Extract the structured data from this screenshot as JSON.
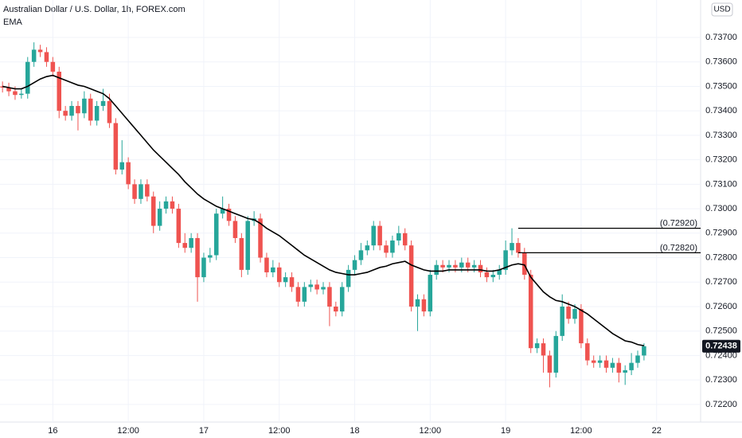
{
  "chart_data": {
    "type": "candlestick",
    "title": "Australian Dollar / U.S. Dollar, 1h, FOREX.com",
    "indicator": "EMA",
    "currency": "USD",
    "up_color": "#26a69a",
    "down_color": "#ef5350",
    "ema_color": "#000000",
    "grid": true,
    "xlim": [
      -0.4,
      111
    ],
    "xticks": [
      {
        "value": 8,
        "label": "16"
      },
      {
        "value": 20,
        "label": "12:00"
      },
      {
        "value": 32,
        "label": "17"
      },
      {
        "value": 44,
        "label": "12:00"
      },
      {
        "value": 56,
        "label": "18"
      },
      {
        "value": 68,
        "label": "12:00"
      },
      {
        "value": 80,
        "label": "19"
      },
      {
        "value": 92,
        "label": "12:00"
      },
      {
        "value": 104,
        "label": "22"
      }
    ],
    "ylim": [
      0.72128,
      0.73853
    ],
    "yticks": [
      {
        "value": 0.722,
        "label": "0.72200"
      },
      {
        "value": 0.723,
        "label": "0.72300"
      },
      {
        "value": 0.724,
        "label": "0.72400"
      },
      {
        "value": 0.725,
        "label": "0.72500"
      },
      {
        "value": 0.726,
        "label": "0.72600"
      },
      {
        "value": 0.727,
        "label": "0.72700"
      },
      {
        "value": 0.728,
        "label": "0.72800"
      },
      {
        "value": 0.729,
        "label": "0.72900"
      },
      {
        "value": 0.73,
        "label": "0.73000"
      },
      {
        "value": 0.731,
        "label": "0.73100"
      },
      {
        "value": 0.732,
        "label": "0.73200"
      },
      {
        "value": 0.733,
        "label": "0.73300"
      },
      {
        "value": 0.734,
        "label": "0.73400"
      },
      {
        "value": 0.735,
        "label": "0.73500"
      },
      {
        "value": 0.736,
        "label": "0.73600"
      },
      {
        "value": 0.737,
        "label": "0.73700"
      }
    ],
    "open": [
      0.735,
      0.73495,
      0.7348,
      0.73465,
      0.7347,
      0.736,
      0.7365,
      0.7364,
      0.736,
      0.7356,
      0.734,
      0.7338,
      0.7342,
      0.7339,
      0.7345,
      0.7336,
      0.7342,
      0.7344,
      0.7335,
      0.7316,
      0.7319,
      0.731,
      0.7304,
      0.731,
      0.7305,
      0.7293,
      0.73,
      0.7303,
      0.73,
      0.7286,
      0.7284,
      0.7288,
      0.7272,
      0.728,
      0.7281,
      0.7298,
      0.73,
      0.7295,
      0.7288,
      0.7275,
      0.7295,
      0.7296,
      0.728,
      0.7274,
      0.7276,
      0.727,
      0.7272,
      0.7268,
      0.7262,
      0.7268,
      0.7269,
      0.7267,
      0.7268,
      0.726,
      0.7258,
      0.7268,
      0.7275,
      0.7279,
      0.7283,
      0.7285,
      0.7293,
      0.7285,
      0.7282,
      0.7287,
      0.729,
      0.7285,
      0.726,
      0.7263,
      0.7258,
      0.7273,
      0.7277,
      0.7276,
      0.7277,
      0.7276,
      0.7278,
      0.7276,
      0.7277,
      0.7274,
      0.7272,
      0.7273,
      0.7275,
      0.7283,
      0.7286,
      0.7282,
      0.7273,
      0.7243,
      0.7245,
      0.724,
      0.7233,
      0.7248,
      0.726,
      0.7255,
      0.7259,
      0.7245,
      0.7238,
      0.7237,
      0.7238,
      0.7235,
      0.7237,
      0.7233,
      0.7234,
      0.7237,
      0.724
    ],
    "high": [
      0.7352,
      0.73515,
      0.735,
      0.7349,
      0.7362,
      0.7368,
      0.7367,
      0.7366,
      0.7362,
      0.7358,
      0.7342,
      0.7344,
      0.7344,
      0.7348,
      0.7347,
      0.7344,
      0.7349,
      0.7347,
      0.7337,
      0.7328,
      0.7321,
      0.7312,
      0.7312,
      0.7312,
      0.7307,
      0.7303,
      0.7305,
      0.7305,
      0.7302,
      0.729,
      0.729,
      0.729,
      0.7282,
      0.7284,
      0.73,
      0.7305,
      0.7302,
      0.7297,
      0.729,
      0.7297,
      0.7299,
      0.7298,
      0.7282,
      0.7279,
      0.7278,
      0.7274,
      0.7274,
      0.727,
      0.727,
      0.7271,
      0.7271,
      0.727,
      0.727,
      0.7262,
      0.727,
      0.7277,
      0.7281,
      0.7286,
      0.7287,
      0.7295,
      0.7295,
      0.7287,
      0.7289,
      0.7293,
      0.7292,
      0.7287,
      0.7265,
      0.7265,
      0.7275,
      0.7279,
      0.7279,
      0.7279,
      0.7279,
      0.728,
      0.728,
      0.7279,
      0.7279,
      0.7276,
      0.7275,
      0.7277,
      0.7287,
      0.7292,
      0.7288,
      0.7284,
      0.7275,
      0.7247,
      0.7247,
      0.7242,
      0.725,
      0.7265,
      0.7262,
      0.7261,
      0.7261,
      0.7247,
      0.724,
      0.724,
      0.724,
      0.7239,
      0.7239,
      0.7236,
      0.7241,
      0.7242,
      0.7245
    ],
    "low": [
      0.73475,
      0.7346,
      0.73445,
      0.7345,
      0.7345,
      0.7358,
      0.7362,
      0.7358,
      0.7354,
      0.7337,
      0.7336,
      0.7336,
      0.7332,
      0.7337,
      0.7334,
      0.7334,
      0.734,
      0.7333,
      0.7314,
      0.7314,
      0.7308,
      0.7302,
      0.7302,
      0.7303,
      0.729,
      0.7291,
      0.7298,
      0.7298,
      0.7284,
      0.7282,
      0.7282,
      0.7262,
      0.727,
      0.7278,
      0.7279,
      0.7296,
      0.7293,
      0.7286,
      0.7272,
      0.7273,
      0.7293,
      0.7278,
      0.7272,
      0.7272,
      0.7268,
      0.7268,
      0.7266,
      0.726,
      0.726,
      0.7266,
      0.7265,
      0.7265,
      0.7252,
      0.7256,
      0.7256,
      0.7266,
      0.7273,
      0.7277,
      0.7281,
      0.7283,
      0.7283,
      0.728,
      0.728,
      0.7285,
      0.7283,
      0.7258,
      0.725,
      0.7256,
      0.7256,
      0.7271,
      0.7274,
      0.7274,
      0.7274,
      0.7274,
      0.7274,
      0.7274,
      0.7272,
      0.727,
      0.727,
      0.7271,
      0.7273,
      0.7281,
      0.728,
      0.7271,
      0.7241,
      0.7241,
      0.7233,
      0.7227,
      0.7231,
      0.7246,
      0.7253,
      0.7253,
      0.7243,
      0.7236,
      0.7235,
      0.7235,
      0.7233,
      0.7233,
      0.7229,
      0.7228,
      0.7232,
      0.7235,
      0.7238
    ],
    "close": [
      0.73495,
      0.7348,
      0.73465,
      0.7347,
      0.736,
      0.7365,
      0.7364,
      0.736,
      0.7356,
      0.734,
      0.7338,
      0.7342,
      0.7339,
      0.7345,
      0.7336,
      0.7342,
      0.7344,
      0.7335,
      0.7316,
      0.7319,
      0.731,
      0.7304,
      0.731,
      0.7305,
      0.7293,
      0.73,
      0.7303,
      0.73,
      0.7286,
      0.7284,
      0.7288,
      0.7272,
      0.728,
      0.7281,
      0.7298,
      0.73,
      0.7295,
      0.7288,
      0.7275,
      0.7295,
      0.7296,
      0.728,
      0.7274,
      0.7276,
      0.727,
      0.7272,
      0.7268,
      0.7262,
      0.7268,
      0.7269,
      0.7267,
      0.7268,
      0.726,
      0.7258,
      0.7268,
      0.7275,
      0.7279,
      0.7283,
      0.7285,
      0.7293,
      0.7285,
      0.7282,
      0.7287,
      0.729,
      0.7285,
      0.726,
      0.7263,
      0.7258,
      0.7273,
      0.7277,
      0.7276,
      0.7277,
      0.7276,
      0.7278,
      0.7276,
      0.7277,
      0.7274,
      0.7272,
      0.7273,
      0.7275,
      0.7283,
      0.7286,
      0.7282,
      0.7273,
      0.7243,
      0.7245,
      0.724,
      0.7233,
      0.7248,
      0.726,
      0.7255,
      0.7259,
      0.7245,
      0.7238,
      0.7237,
      0.7238,
      0.7235,
      0.7237,
      0.7233,
      0.7234,
      0.7237,
      0.724,
      0.72438
    ],
    "ema": [
      0.735,
      0.73495,
      0.7349,
      0.7349,
      0.735,
      0.73515,
      0.7353,
      0.7354,
      0.73545,
      0.73535,
      0.73525,
      0.73515,
      0.73505,
      0.735,
      0.7349,
      0.7348,
      0.7347,
      0.7345,
      0.7342,
      0.7339,
      0.7336,
      0.7333,
      0.733,
      0.7327,
      0.7324,
      0.73215,
      0.7319,
      0.73165,
      0.7314,
      0.7311,
      0.73085,
      0.7306,
      0.7304,
      0.73025,
      0.7301,
      0.73,
      0.7299,
      0.7298,
      0.7297,
      0.7296,
      0.72955,
      0.7294,
      0.7292,
      0.72905,
      0.7289,
      0.7287,
      0.7285,
      0.7283,
      0.7281,
      0.72795,
      0.7278,
      0.72765,
      0.7275,
      0.7274,
      0.72735,
      0.7273,
      0.7273,
      0.72735,
      0.7274,
      0.7275,
      0.7276,
      0.72765,
      0.72775,
      0.7278,
      0.72785,
      0.7277,
      0.7276,
      0.7275,
      0.72745,
      0.72745,
      0.72745,
      0.7275,
      0.7275,
      0.7275,
      0.7275,
      0.7275,
      0.7275,
      0.72745,
      0.72745,
      0.7275,
      0.7276,
      0.7277,
      0.72775,
      0.7277,
      0.7272,
      0.7269,
      0.7266,
      0.7264,
      0.72625,
      0.7262,
      0.7261,
      0.726,
      0.72585,
      0.7257,
      0.7255,
      0.7253,
      0.7251,
      0.7249,
      0.72475,
      0.7246,
      0.72455,
      0.72445,
      0.7244
    ],
    "annotations": [
      {
        "value": 0.7292,
        "label": "(0.72920)",
        "x_start": 82
      },
      {
        "value": 0.7282,
        "label": "(0.72820)",
        "x_start": 82
      }
    ],
    "last_price": {
      "value": 0.72438,
      "label": "0.72438"
    }
  }
}
